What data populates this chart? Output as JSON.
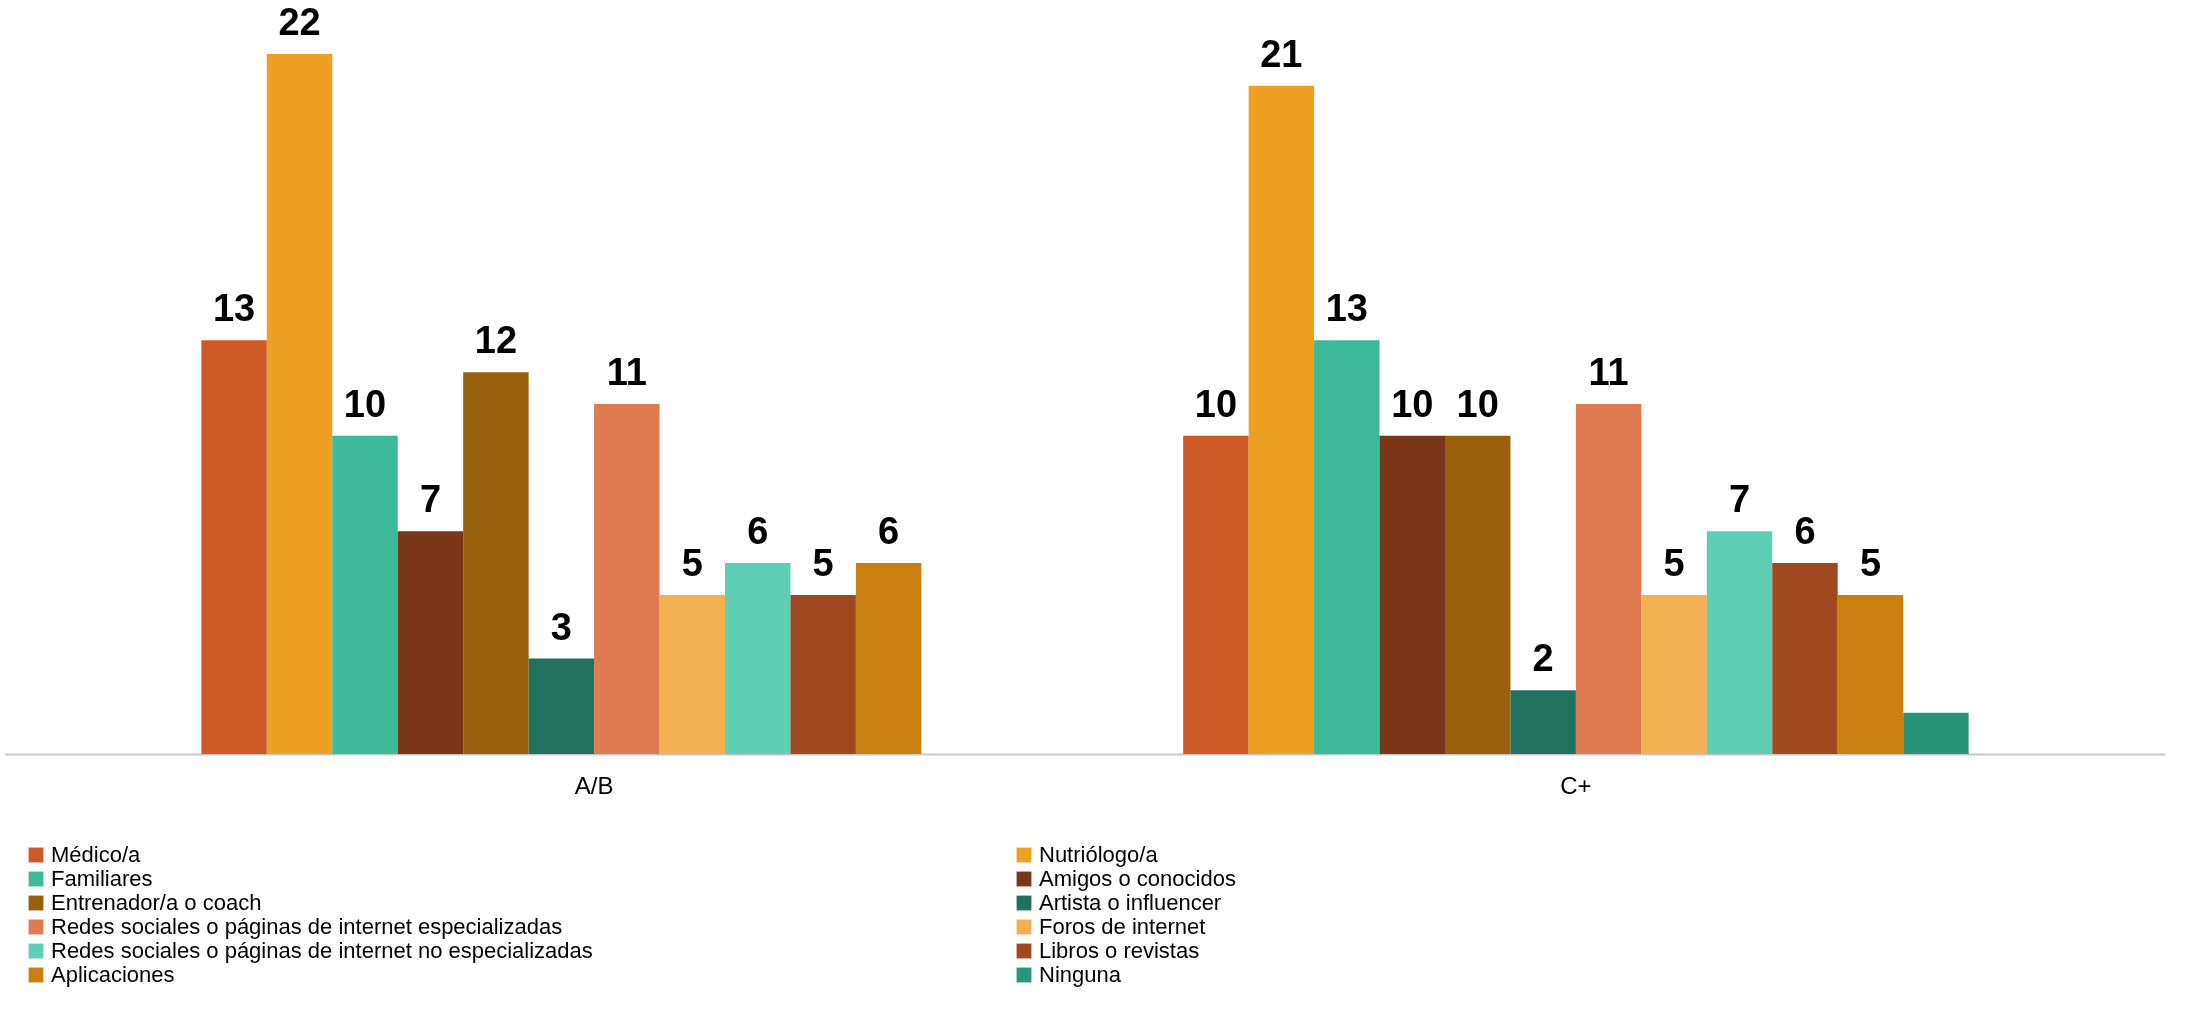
{
  "chart_data": {
    "type": "bar",
    "categories": [
      "A/B",
      "C+"
    ],
    "series": [
      {
        "name": "Médico/a",
        "color": "#cd5a27",
        "values": [
          13,
          10
        ],
        "value_labels": [
          "13",
          "10"
        ]
      },
      {
        "name": "Nutriólogo/a",
        "color": "#eea023",
        "values": [
          22,
          21
        ],
        "value_labels": [
          "22",
          "21"
        ]
      },
      {
        "name": "Familiares",
        "color": "#3bb998",
        "values": [
          10,
          13
        ],
        "value_labels": [
          "10",
          "13"
        ]
      },
      {
        "name": "Amigos o conocidos",
        "color": "#7a3618",
        "values": [
          7,
          10
        ],
        "value_labels": [
          "7",
          "10"
        ]
      },
      {
        "name": "Entrenador/a o coach",
        "color": "#98600c",
        "values": [
          12,
          10
        ],
        "value_labels": [
          "12",
          "10"
        ]
      },
      {
        "name": "Artista o influencer",
        "color": "#22715e",
        "values": [
          3,
          2
        ],
        "value_labels": [
          "3",
          "2"
        ]
      },
      {
        "name": "Redes sociales o páginas de internet especializadas",
        "color": "#e07a50",
        "values": [
          11,
          11
        ],
        "value_labels": [
          "11",
          "11"
        ]
      },
      {
        "name": "Foros de internet",
        "color": "#f2b050",
        "values": [
          5,
          5
        ],
        "value_labels": [
          "5",
          "5"
        ]
      },
      {
        "name": "Redes sociales o páginas de internet no especializadas",
        "color": "#5ecfb4",
        "values": [
          6,
          7
        ],
        "value_labels": [
          "6",
          "7"
        ]
      },
      {
        "name": "Libros o revistas",
        "color": "#a0481f",
        "values": [
          5,
          6
        ],
        "value_labels": [
          "5",
          "6"
        ]
      },
      {
        "name": "Aplicaciones",
        "color": "#c98010",
        "values": [
          6,
          5
        ],
        "value_labels": [
          "6",
          "5"
        ]
      },
      {
        "name": "Ninguna",
        "color": "#2a9679",
        "values": [
          null,
          1.3
        ],
        "value_labels": [
          null,
          null
        ]
      }
    ],
    "legend": "bottom left"
  }
}
